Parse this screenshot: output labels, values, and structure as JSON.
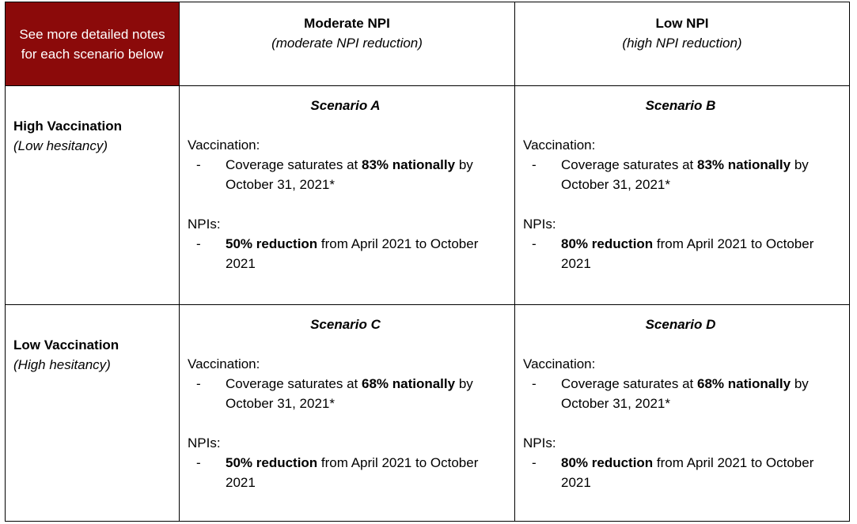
{
  "corner_note": "See more detailed notes for each scenario below",
  "columns": [
    {
      "title": "Moderate NPI",
      "subtitle": "(moderate NPI reduction)"
    },
    {
      "title": "Low NPI",
      "subtitle": "(high NPI reduction)"
    }
  ],
  "rows": [
    {
      "title": "High Vaccination",
      "subtitle": "(Low hesitancy)",
      "cells": [
        {
          "scenario": "Scenario A",
          "vacc_label": "Vaccination:",
          "dash": "-",
          "vacc_pre": "Coverage saturates at ",
          "vacc_bold": "83% nationally",
          "vacc_post": " by October 31, 2021*",
          "npi_label": "NPIs:",
          "npi_bold": "50% reduction",
          "npi_post": " from April 2021 to October 2021"
        },
        {
          "scenario": "Scenario B",
          "vacc_label": "Vaccination:",
          "dash": "-",
          "vacc_pre": "Coverage saturates at ",
          "vacc_bold": "83% nationally",
          "vacc_post": " by October 31, 2021*",
          "npi_label": "NPIs:",
          "npi_bold": "80% reduction",
          "npi_post": " from April 2021 to October 2021"
        }
      ]
    },
    {
      "title": "Low Vaccination",
      "subtitle": "(High hesitancy)",
      "cells": [
        {
          "scenario": "Scenario C",
          "vacc_label": "Vaccination:",
          "dash": "-",
          "vacc_pre": "Coverage saturates at ",
          "vacc_bold": "68% nationally",
          "vacc_post": " by October 31, 2021*",
          "npi_label": "NPIs:",
          "npi_bold": "50% reduction",
          "npi_post": " from April 2021 to October 2021"
        },
        {
          "scenario": "Scenario D",
          "vacc_label": "Vaccination:",
          "dash": "-",
          "vacc_pre": "Coverage saturates at ",
          "vacc_bold": "68% nationally",
          "vacc_post": " by October 31, 2021*",
          "npi_label": "NPIs:",
          "npi_bold": "80% reduction",
          "npi_post": " from April 2021 to October 2021"
        }
      ]
    }
  ],
  "colors": {
    "corner_bg": "#8b0a0a",
    "corner_text": "#ffffff",
    "border": "#000000"
  }
}
